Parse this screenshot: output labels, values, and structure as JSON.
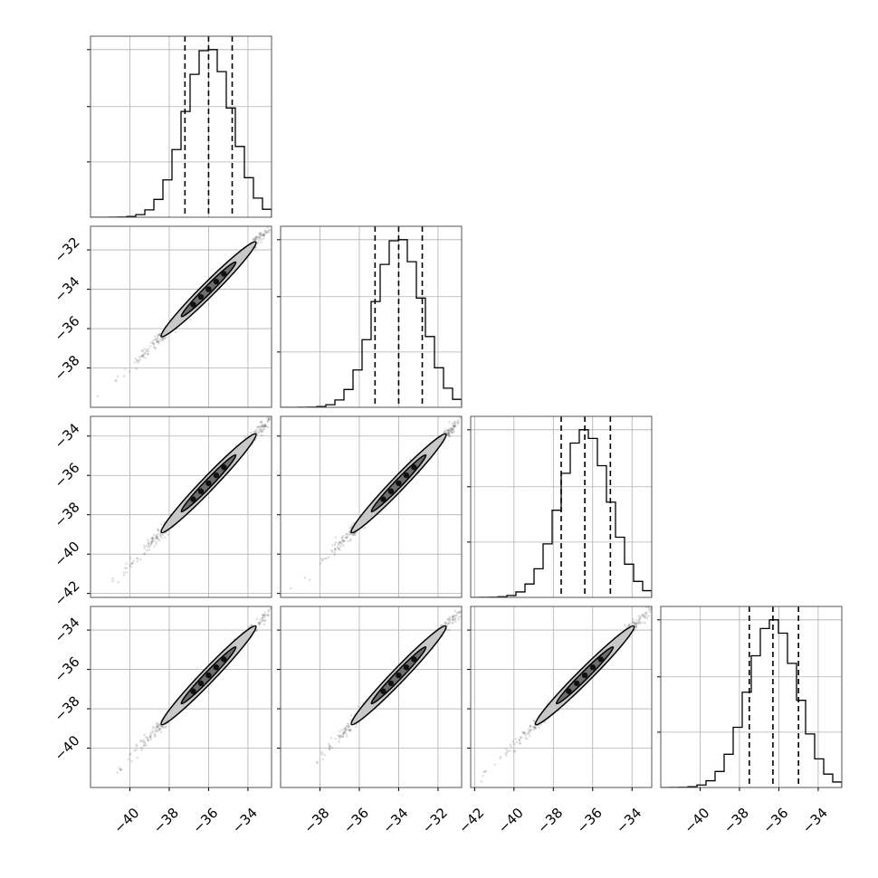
{
  "chart_data": {
    "type": "corner",
    "n_params": 4,
    "parameters": [
      {
        "range": [
          -42.0,
          -32.8
        ],
        "median": -36.0,
        "q16": -37.2,
        "q84": -34.8,
        "sigma": 1.2,
        "ticks": [
          -40,
          -38,
          -36,
          -34
        ],
        "tick_labels": [
          "−40",
          "−38",
          "−36",
          "−34"
        ]
      },
      {
        "range": [
          -40.0,
          -30.8
        ],
        "median": -34.0,
        "q16": -35.2,
        "q84": -32.8,
        "sigma": 1.2,
        "ticks": [
          -38,
          -36,
          -34,
          -32
        ],
        "tick_labels": [
          "−38",
          "−36",
          "−34",
          "−32"
        ]
      },
      {
        "range": [
          -42.2,
          -33.0
        ],
        "median": -36.4,
        "q16": -37.6,
        "q84": -35.1,
        "sigma": 1.25,
        "ticks": [
          -42,
          -40,
          -38,
          -36,
          -34
        ],
        "tick_labels": [
          "−42",
          "−40",
          "−38",
          "−36",
          "−34"
        ]
      },
      {
        "range": [
          -42.0,
          -32.8
        ],
        "median": -36.3,
        "q16": -37.5,
        "q84": -35.0,
        "sigma": 1.25,
        "ticks": [
          -40,
          -38,
          -36,
          -34
        ],
        "tick_labels": [
          "−40",
          "−38",
          "−36",
          "−34"
        ]
      }
    ],
    "correlation": 0.995,
    "grid": true,
    "contour_levels": [
      0.39,
      0.86
    ],
    "colors": {
      "hist": "#000000",
      "scatter": "#000000",
      "contour_outer": "#c8c8c8",
      "contour_inner": "#6e6e6e",
      "grid": "#b0b0b0"
    }
  }
}
